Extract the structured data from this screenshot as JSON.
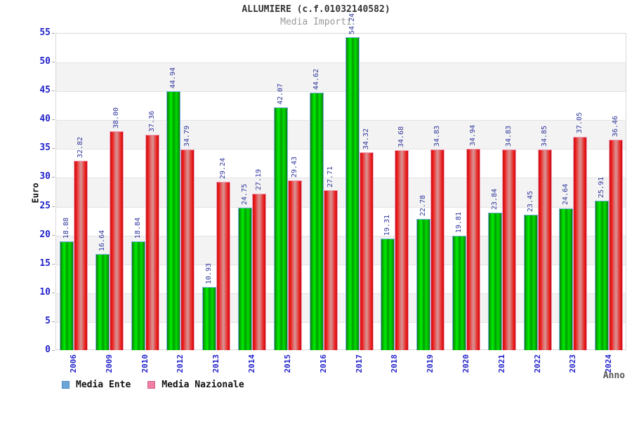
{
  "header": {
    "title": "ALLUMIERE (c.f.01032140582)",
    "subtitle": "Media Importi"
  },
  "axes": {
    "y_label": "Euro",
    "x_label": "Anno"
  },
  "legend": {
    "items": [
      {
        "label": "Media Ente",
        "swatch": "legend-blue-square"
      },
      {
        "label": "Media Nazionale",
        "swatch": "legend-pink-square"
      }
    ]
  },
  "colors": {
    "bar_green": "#00dd00",
    "bar_green_edge": "#117b11",
    "bar_green_outline": "#7db1e4",
    "bar_red": "#ee2222",
    "bar_red_center": "#da9494",
    "bar_red_outline": "#f4a2c0",
    "tick_label_blue": "#2222cc",
    "value_label_navy": "#333a9e",
    "legend_blue": "#6ca6d9",
    "legend_pink": "#ef7fa5",
    "band_gray": "#f3f3f3",
    "subtitle_gray": "#999999"
  },
  "chart_data": {
    "type": "bar",
    "title": "ALLUMIERE (c.f.01032140582)",
    "subtitle": "Media Importi",
    "xlabel": "Anno",
    "ylabel": "Euro",
    "ylim": [
      0,
      55
    ],
    "ytick_step": 5,
    "grid": "horizontal-bands-alternating",
    "legend_position": "bottom-left",
    "value_label_format": "2-decimals-rotated-90",
    "categories": [
      "2006",
      "2009",
      "2010",
      "2012",
      "2013",
      "2014",
      "2015",
      "2016",
      "2017",
      "2018",
      "2019",
      "2020",
      "2021",
      "2022",
      "2023",
      "2024"
    ],
    "series": [
      {
        "name": "Media Ente",
        "color_style": "green-gloss",
        "values": [
          18.88,
          16.64,
          18.84,
          44.94,
          10.93,
          24.75,
          42.07,
          44.62,
          54.24,
          19.31,
          22.78,
          19.81,
          23.84,
          23.45,
          24.64,
          25.91
        ]
      },
      {
        "name": "Media Nazionale",
        "color_style": "red-gloss",
        "values": [
          32.82,
          38.0,
          37.36,
          34.79,
          29.24,
          27.19,
          29.43,
          27.71,
          34.32,
          34.68,
          34.83,
          34.94,
          34.83,
          34.85,
          37.05,
          36.46
        ]
      }
    ]
  }
}
